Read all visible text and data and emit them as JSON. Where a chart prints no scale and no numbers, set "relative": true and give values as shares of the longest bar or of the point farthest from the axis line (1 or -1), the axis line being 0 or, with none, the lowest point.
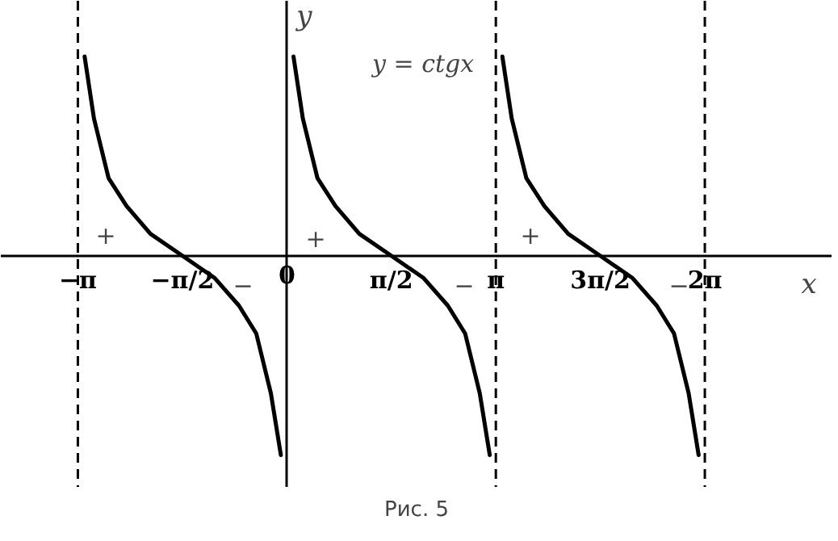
{
  "chart_data": {
    "type": "line",
    "relative": true,
    "xlabel": "x",
    "ylabel": "y",
    "xlim": [
      -4.3,
      8.2
    ],
    "xticks": [
      {
        "value": -3.1416,
        "label": "−π"
      },
      {
        "value": -1.5708,
        "label": "−π/2"
      },
      {
        "value": 0,
        "label": "0"
      },
      {
        "value": 1.5708,
        "label": "π/2"
      },
      {
        "value": 3.1416,
        "label": "π"
      },
      {
        "value": 4.7124,
        "label": "3π/2"
      },
      {
        "value": 6.2832,
        "label": "2π"
      }
    ],
    "series": [
      {
        "color": "#000000",
        "x": [
          -3.04,
          -2.9,
          -2.68,
          -2.41,
          -2.05,
          -1.57,
          -1.09,
          -0.72,
          -0.46,
          -0.24,
          -0.09
        ],
        "values": [
          1,
          0.69,
          0.39,
          0.25,
          0.11,
          0,
          -0.11,
          -0.25,
          -0.39,
          -0.69,
          -1
        ]
      },
      {
        "color": "#000000",
        "x": [
          0.1,
          0.24,
          0.46,
          0.73,
          1.09,
          1.57,
          2.05,
          2.42,
          2.68,
          2.9,
          3.05
        ],
        "values": [
          1,
          0.69,
          0.39,
          0.25,
          0.11,
          0,
          -0.11,
          -0.25,
          -0.39,
          -0.69,
          -1
        ]
      },
      {
        "color": "#000000",
        "x": [
          3.24,
          3.38,
          3.6,
          3.87,
          4.23,
          4.71,
          5.19,
          5.56,
          5.82,
          6.04,
          6.19
        ],
        "values": [
          1,
          0.69,
          0.39,
          0.25,
          0.11,
          0,
          -0.11,
          -0.25,
          -0.39,
          -0.69,
          -1
        ]
      }
    ],
    "ref_lines": [
      {
        "axis": "x",
        "value": -3.1416,
        "line_style": "dashed",
        "color": "#000000"
      },
      {
        "axis": "x",
        "value": 3.1416,
        "line_style": "dashed",
        "color": "#000000"
      },
      {
        "axis": "x",
        "value": 6.2832,
        "line_style": "dashed",
        "color": "#000000"
      }
    ],
    "annotations": [
      "y = ctgx",
      "+",
      "+",
      "+",
      "−",
      "−",
      "−",
      "Рис. 5"
    ],
    "grid": false
  }
}
